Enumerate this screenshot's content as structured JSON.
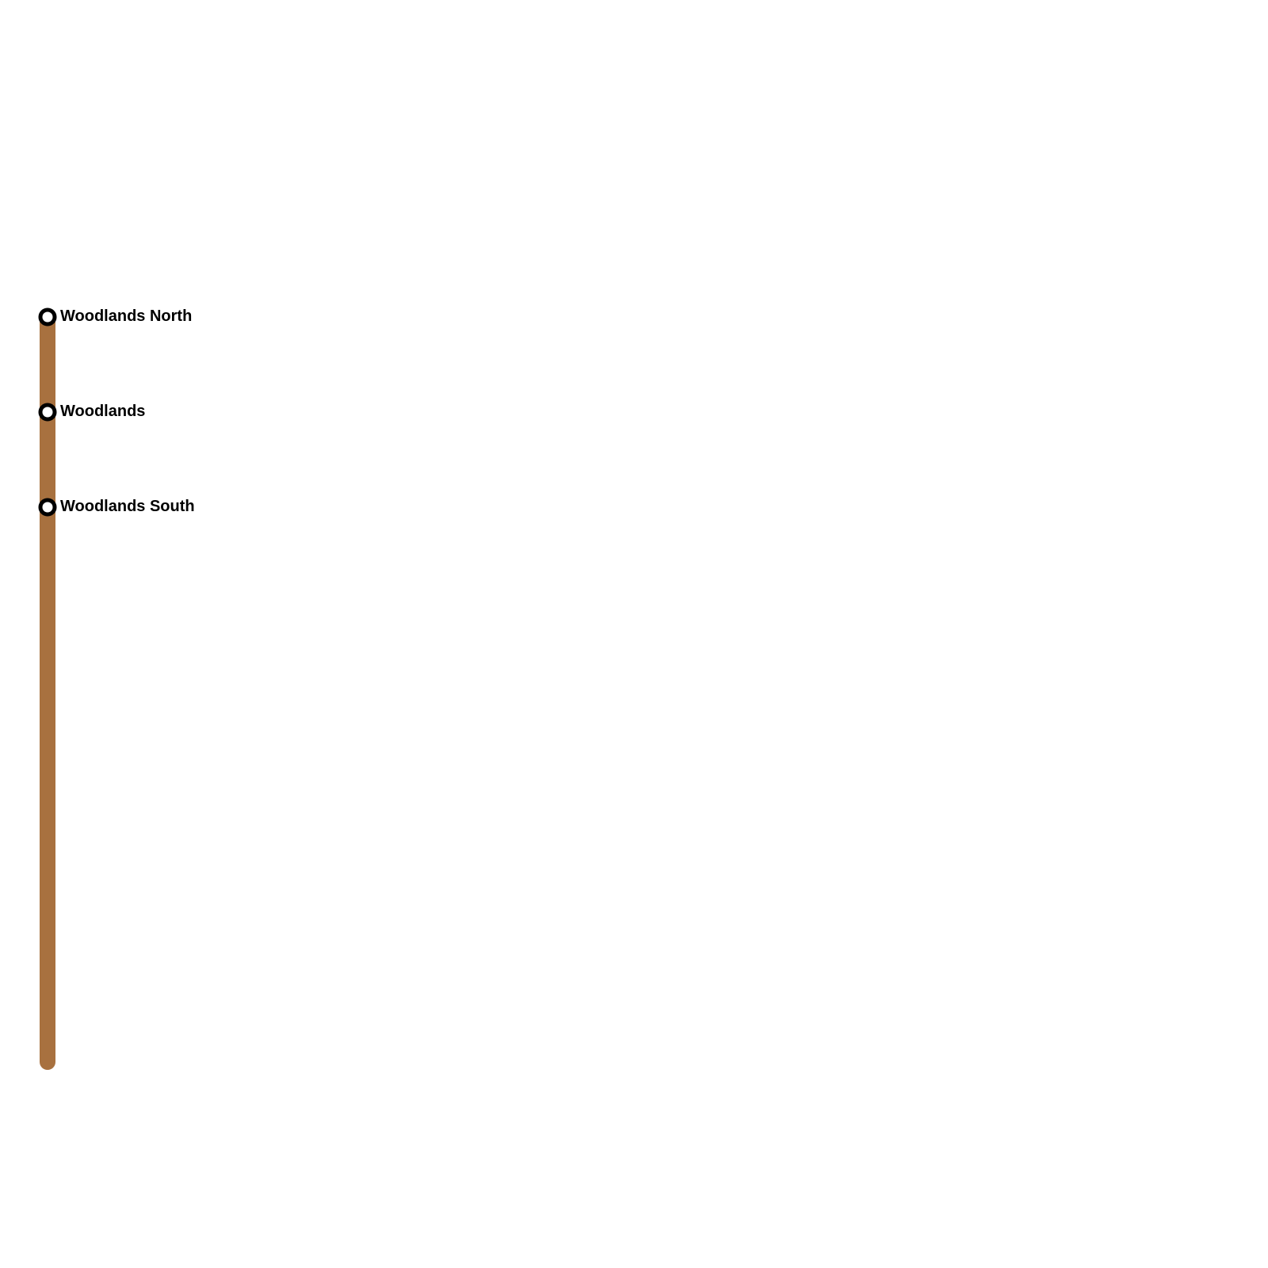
{
  "line": {
    "color": "#A8713F"
  },
  "stations": [
    {
      "name": "Woodlands North"
    },
    {
      "name": "Woodlands"
    },
    {
      "name": "Woodlands South"
    }
  ]
}
